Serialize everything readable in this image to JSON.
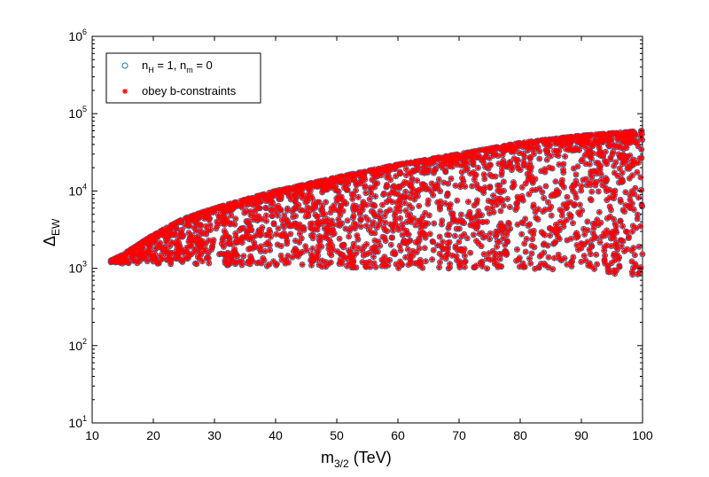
{
  "chart_data": {
    "type": "scatter",
    "xlabel": {
      "main": "m",
      "sub": "3/2",
      "tail": " (TeV)"
    },
    "ylabel": {
      "main": "Δ",
      "sub": "EW"
    },
    "x_ticks": [
      "10",
      "20",
      "30",
      "40",
      "50",
      "60",
      "70",
      "80",
      "90",
      "100"
    ],
    "y_ticks": [
      {
        "base": "10",
        "exp": "1"
      },
      {
        "base": "10",
        "exp": "2"
      },
      {
        "base": "10",
        "exp": "3"
      },
      {
        "base": "10",
        "exp": "4"
      },
      {
        "base": "10",
        "exp": "5"
      },
      {
        "base": "10",
        "exp": "6"
      }
    ],
    "xlim": [
      10,
      100
    ],
    "ylim": [
      10,
      1000000
    ],
    "yscale": "log",
    "grid": false,
    "legend_position": "top-left",
    "legend": [
      {
        "parts": [
          "n",
          "H",
          " = 1, n",
          "m",
          " = 0"
        ],
        "marker": "circle",
        "color": "#1f77b4"
      },
      {
        "text": "obey b-constraints",
        "marker": "asterisk",
        "color": "#ff0000"
      }
    ],
    "series": [
      {
        "marker": "circle",
        "color": "#1f77b4",
        "upper_envelope": [
          [
            13,
            1250
          ],
          [
            15,
            1500
          ],
          [
            20,
            2700
          ],
          [
            25,
            4400
          ],
          [
            30,
            6000
          ],
          [
            40,
            10000
          ],
          [
            50,
            15000
          ],
          [
            60,
            22000
          ],
          [
            70,
            30000
          ],
          [
            80,
            42000
          ],
          [
            90,
            52000
          ],
          [
            100,
            60000
          ]
        ],
        "lower_envelope": [
          [
            13,
            1150
          ],
          [
            20,
            1150
          ],
          [
            30,
            1100
          ],
          [
            40,
            1050
          ],
          [
            50,
            1020
          ],
          [
            60,
            1000
          ],
          [
            70,
            980
          ],
          [
            80,
            950
          ],
          [
            90,
            900
          ],
          [
            100,
            800
          ]
        ],
        "x_range": [
          13,
          100
        ]
      },
      {
        "marker": "asterisk",
        "color": "#ff0000",
        "upper_envelope": [
          [
            13,
            1250
          ],
          [
            15,
            1500
          ],
          [
            20,
            2700
          ],
          [
            25,
            4400
          ],
          [
            30,
            6000
          ],
          [
            40,
            10000
          ],
          [
            50,
            15000
          ],
          [
            60,
            22000
          ],
          [
            70,
            30000
          ],
          [
            80,
            42000
          ],
          [
            90,
            52000
          ],
          [
            100,
            60000
          ]
        ],
        "lower_envelope": [
          [
            13,
            1150
          ],
          [
            20,
            1150
          ],
          [
            30,
            1100
          ],
          [
            40,
            1050
          ],
          [
            50,
            1020
          ],
          [
            60,
            1000
          ],
          [
            70,
            980
          ],
          [
            80,
            950
          ],
          [
            90,
            900
          ],
          [
            100,
            800
          ]
        ],
        "x_range": [
          13,
          100
        ]
      }
    ]
  }
}
